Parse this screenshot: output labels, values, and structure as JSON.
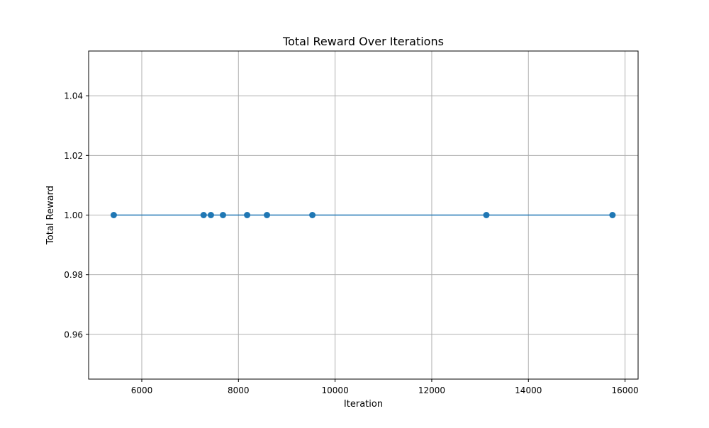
{
  "chart_data": {
    "type": "line",
    "title": "Total Reward Over Iterations",
    "xlabel": "Iteration",
    "ylabel": "Total Reward",
    "xlim": [
      4900,
      16270
    ],
    "ylim": [
      0.945,
      1.055
    ],
    "xticks": [
      6000,
      8000,
      10000,
      12000,
      14000,
      16000
    ],
    "xtick_labels": [
      "6000",
      "8000",
      "10000",
      "12000",
      "14000",
      "16000"
    ],
    "yticks": [
      0.96,
      0.98,
      1.0,
      1.02,
      1.04
    ],
    "ytick_labels": [
      "0.96",
      "0.98",
      "1.00",
      "1.02",
      "1.04"
    ],
    "grid": true,
    "color": "#1f77b4",
    "series": [
      {
        "x": [
          5420,
          7280,
          7430,
          7680,
          8180,
          8590,
          9530,
          13130,
          15740
        ],
        "y": [
          1.0,
          1.0,
          1.0,
          1.0,
          1.0,
          1.0,
          1.0,
          1.0,
          1.0
        ]
      }
    ]
  }
}
